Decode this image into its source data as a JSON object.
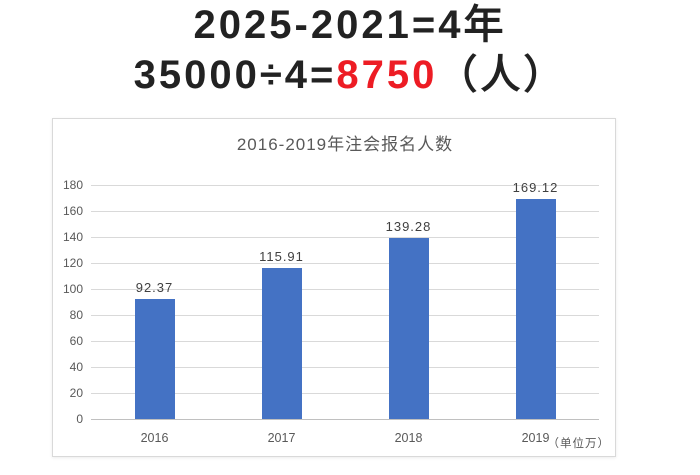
{
  "formula": {
    "line1": "2025-2021=4年",
    "line2_prefix": "35000÷4=",
    "line2_highlight": "8750",
    "line2_suffix": "（人）",
    "highlight_color": "#ed1c24",
    "text_color": "#222222"
  },
  "chart_data": {
    "type": "bar",
    "title": "2016-2019年注会报名人数",
    "categories": [
      "2016",
      "2017",
      "2018",
      "2019"
    ],
    "values": [
      92.37,
      115.91,
      139.28,
      169.12
    ],
    "value_labels": [
      "92.37",
      "115.91",
      "139.28",
      "169.12"
    ],
    "unit_note": "（单位万）",
    "xlabel": "",
    "ylabel": "",
    "ylim": [
      0,
      180
    ],
    "yticks": [
      0,
      20,
      40,
      60,
      80,
      100,
      120,
      140,
      160,
      180
    ],
    "grid": true,
    "legend": "none",
    "bar_color": "#4472c4",
    "gridline_color": "#d9d9d9",
    "axis_color": "#c0c0c0",
    "tick_label_color": "#595959",
    "title_color": "#595959",
    "value_label_color": "#404040"
  }
}
